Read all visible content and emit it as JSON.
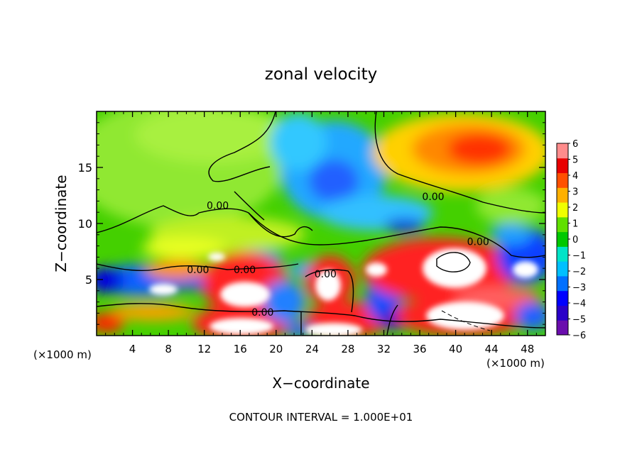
{
  "chart_data": {
    "type": "heatmap",
    "title": "zonal velocity",
    "xlabel": "X−coordinate",
    "ylabel": "Z−coordinate",
    "x_unit_left": "(×1000 m)",
    "x_unit_right": "(×1000 m)",
    "footer": "CONTOUR INTERVAL = 1.000E+01",
    "xlim": [
      0,
      50
    ],
    "ylim": [
      0,
      20
    ],
    "x_ticks": [
      4,
      8,
      12,
      16,
      20,
      24,
      28,
      32,
      36,
      40,
      44,
      48
    ],
    "x_tick_labels": [
      "4",
      "8",
      "12",
      "16",
      "20",
      "24",
      "28",
      "32",
      "36",
      "40",
      "44",
      "48"
    ],
    "y_ticks": [
      5,
      10,
      15
    ],
    "y_tick_labels": [
      "5",
      "10",
      "15"
    ],
    "colorbar": {
      "min": -6,
      "max": 6,
      "labels": [
        "6",
        "5",
        "4",
        "3",
        "2",
        "1",
        "0",
        "−1",
        "−2",
        "−3",
        "−4",
        "−5",
        "−6"
      ],
      "colors": [
        "#6a0dad",
        "#2a00c8",
        "#0000ff",
        "#0070ff",
        "#00c0ff",
        "#00e4c8",
        "#00c800",
        "#60e000",
        "#f0ff00",
        "#ffb000",
        "#ff5000",
        "#e80000",
        "#ff8c8c"
      ]
    },
    "contour_labels": [
      {
        "text": "0.00",
        "x": 37.5,
        "y": 12.4
      },
      {
        "text": "0.00",
        "x": 42.5,
        "y": 8.4
      },
      {
        "text": "0.00",
        "x": 13.5,
        "y": 11.6
      },
      {
        "text": "0.00",
        "x": 11.3,
        "y": 5.9
      },
      {
        "text": "0.00",
        "x": 16.5,
        "y": 5.9
      },
      {
        "text": "0.00",
        "x": 25.5,
        "y": 5.5
      },
      {
        "text": "0.00",
        "x": 18.5,
        "y": 2.1
      }
    ]
  }
}
